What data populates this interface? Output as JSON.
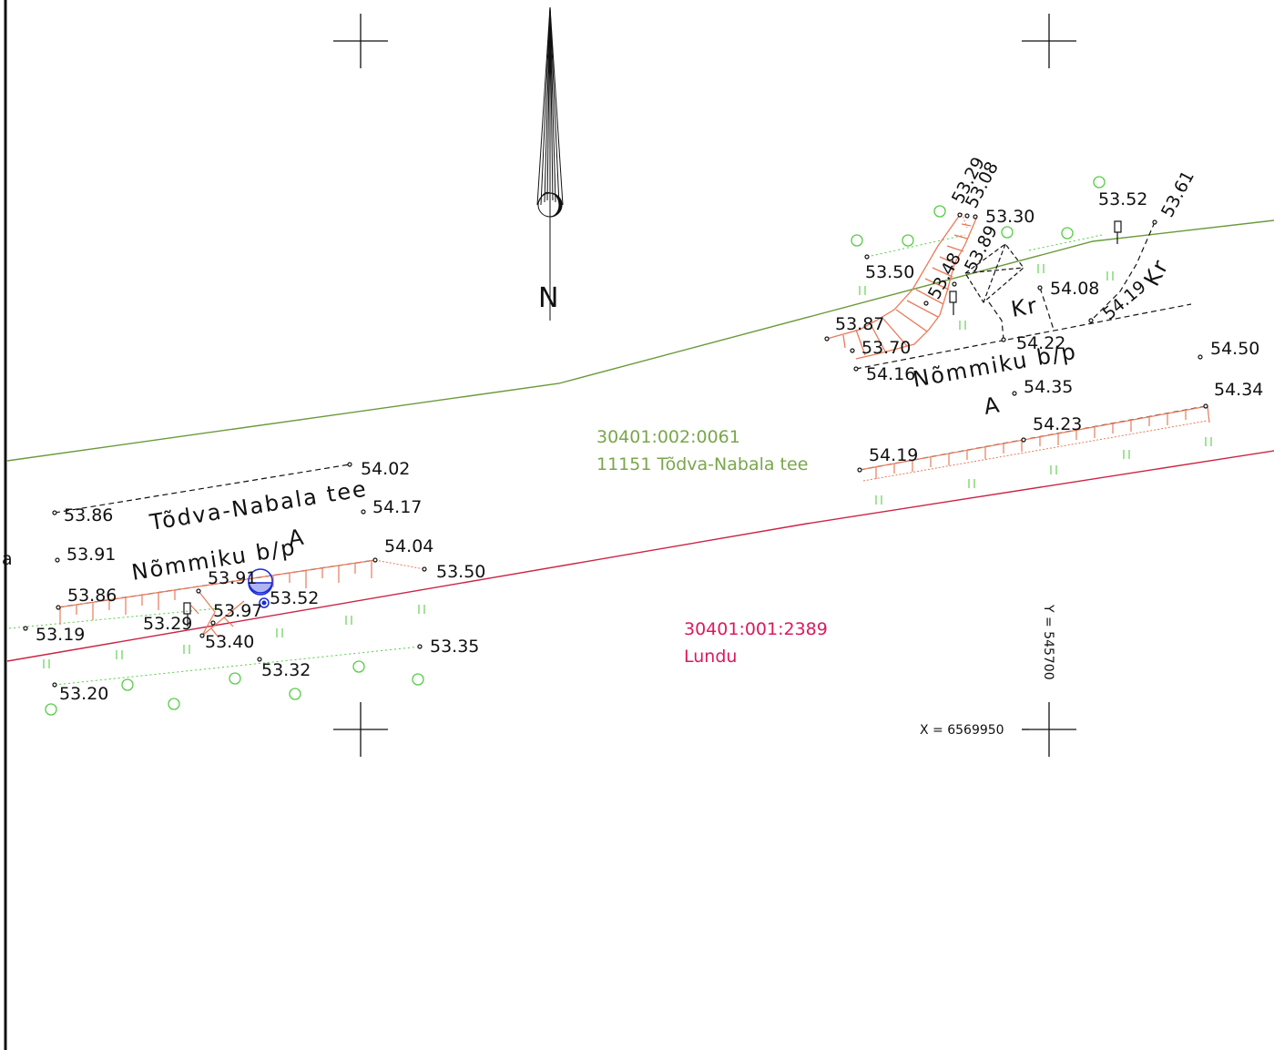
{
  "north_label": "N",
  "parcels": {
    "road_parcel_id": "30401:002:0061",
    "road_parcel_name": "11151 Tõdva-Nabala tee",
    "south_parcel_id": "30401:001:2389",
    "south_parcel_name": "Lundu"
  },
  "road_labels": {
    "road_name": "Tõdva-Nabala tee",
    "bus_stop_west": "Nõmmiku b/p",
    "bus_stop_east": "Nõmmiku b/p",
    "a_west": "A",
    "a_east": "A",
    "kr_1": "Kr",
    "kr_2": "Kr",
    "edge_letter": "a"
  },
  "coords": {
    "x_label": "X = 6569950",
    "y_label": "Y = 545700"
  },
  "elevations": {
    "e5402": "54.02",
    "e5386a": "53.86",
    "e5417": "54.17",
    "e5391a": "53.91",
    "e5404": "54.04",
    "e5350a": "53.50",
    "e5391b": "53.91",
    "e5386b": "53.86",
    "e5397": "53.97",
    "e5352a": "53.52",
    "e5329a": "53.29",
    "e5319": "53.19",
    "e5340": "53.40",
    "e5335": "53.35",
    "e5332": "53.32",
    "e5320": "53.20",
    "e5329b": "53.29",
    "e5308": "53.08",
    "e5330": "53.30",
    "e5352b": "53.52",
    "e5361": "53.61",
    "e5350b": "53.50",
    "e5348": "53.48",
    "e5389": "53.89",
    "e5408": "54.08",
    "e5419a": "54.19",
    "e5387": "53.87",
    "e5370": "53.70",
    "e5422": "54.22",
    "e5416": "54.16",
    "e5450": "54.50",
    "e5435": "54.35",
    "e5434": "54.34",
    "e5423": "54.23",
    "e5419b": "54.19"
  }
}
